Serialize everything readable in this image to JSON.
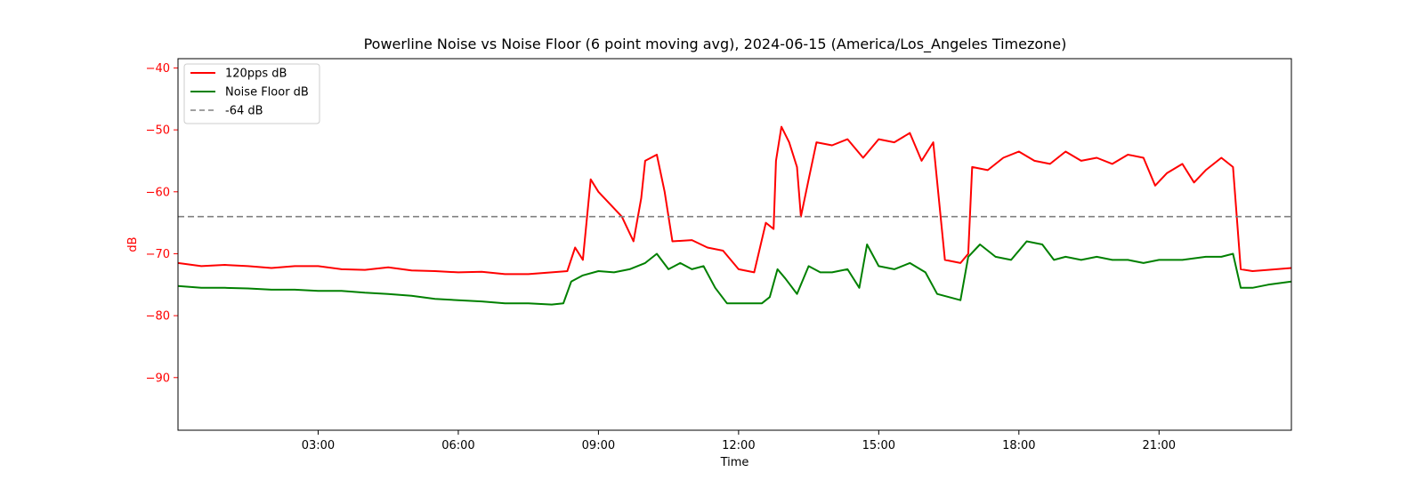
{
  "chart_data": {
    "type": "line",
    "title": "Powerline Noise vs Noise Floor (6 point moving avg), 2024-06-15 (America/Los_Angeles Timezone)",
    "xlabel": "Time",
    "ylabel": "dB",
    "xlim": [
      "00:00",
      "23:50"
    ],
    "ylim": [
      -98.5,
      -38.5
    ],
    "x_ticks": [
      "03:00",
      "06:00",
      "09:00",
      "12:00",
      "15:00",
      "18:00",
      "21:00"
    ],
    "y_ticks": [
      -40,
      -50,
      -60,
      -70,
      -80,
      -90
    ],
    "grid": false,
    "legend_position": "top-left",
    "ylabel_color": "#ff0000",
    "series": [
      {
        "name": "120pps dB",
        "color": "#ff0000",
        "style": "solid",
        "points": [
          [
            "00:00",
            -71.5
          ],
          [
            "00:30",
            -72.0
          ],
          [
            "01:00",
            -71.8
          ],
          [
            "01:30",
            -72.0
          ],
          [
            "02:00",
            -72.3
          ],
          [
            "02:30",
            -72.0
          ],
          [
            "03:00",
            -72.0
          ],
          [
            "03:30",
            -72.5
          ],
          [
            "04:00",
            -72.6
          ],
          [
            "04:30",
            -72.2
          ],
          [
            "05:00",
            -72.7
          ],
          [
            "05:30",
            -72.8
          ],
          [
            "06:00",
            -73.0
          ],
          [
            "06:30",
            -72.9
          ],
          [
            "07:00",
            -73.3
          ],
          [
            "07:30",
            -73.3
          ],
          [
            "08:00",
            -73.0
          ],
          [
            "08:20",
            -72.8
          ],
          [
            "08:30",
            -69.0
          ],
          [
            "08:40",
            -71.0
          ],
          [
            "08:50",
            -58.0
          ],
          [
            "09:00",
            -60.0
          ],
          [
            "09:15",
            -62.0
          ],
          [
            "09:30",
            -64.0
          ],
          [
            "09:45",
            -68.0
          ],
          [
            "09:55",
            -61.0
          ],
          [
            "10:00",
            -55.0
          ],
          [
            "10:15",
            -54.0
          ],
          [
            "10:25",
            -60.0
          ],
          [
            "10:35",
            -68.0
          ],
          [
            "11:00",
            -67.8
          ],
          [
            "11:20",
            -69.0
          ],
          [
            "11:40",
            -69.5
          ],
          [
            "12:00",
            -72.5
          ],
          [
            "12:20",
            -73.0
          ],
          [
            "12:35",
            -65.0
          ],
          [
            "12:45",
            -66.0
          ],
          [
            "12:48",
            -55.0
          ],
          [
            "12:55",
            -49.5
          ],
          [
            "13:05",
            -52.0
          ],
          [
            "13:15",
            -56.0
          ],
          [
            "13:20",
            -64.0
          ],
          [
            "13:30",
            -58.0
          ],
          [
            "13:40",
            -52.0
          ],
          [
            "14:00",
            -52.5
          ],
          [
            "14:20",
            -51.5
          ],
          [
            "14:40",
            -54.5
          ],
          [
            "15:00",
            -51.5
          ],
          [
            "15:20",
            -52.0
          ],
          [
            "15:40",
            -50.5
          ],
          [
            "15:55",
            -55.0
          ],
          [
            "16:10",
            -52.0
          ],
          [
            "16:25",
            -71.0
          ],
          [
            "16:45",
            -71.5
          ],
          [
            "16:55",
            -70.0
          ],
          [
            "17:00",
            -56.0
          ],
          [
            "17:20",
            -56.5
          ],
          [
            "17:40",
            -54.5
          ],
          [
            "18:00",
            -53.5
          ],
          [
            "18:20",
            -55.0
          ],
          [
            "18:40",
            -55.5
          ],
          [
            "19:00",
            -53.5
          ],
          [
            "19:20",
            -55.0
          ],
          [
            "19:40",
            -54.5
          ],
          [
            "20:00",
            -55.5
          ],
          [
            "20:20",
            -54.0
          ],
          [
            "20:40",
            -54.5
          ],
          [
            "20:55",
            -59.0
          ],
          [
            "21:10",
            -57.0
          ],
          [
            "21:30",
            -55.5
          ],
          [
            "21:45",
            -58.5
          ],
          [
            "22:00",
            -56.5
          ],
          [
            "22:20",
            -54.5
          ],
          [
            "22:35",
            -56.0
          ],
          [
            "22:45",
            -72.5
          ],
          [
            "23:00",
            -72.8
          ],
          [
            "23:20",
            -72.6
          ],
          [
            "23:50",
            -72.3
          ]
        ]
      },
      {
        "name": "Noise Floor dB",
        "color": "#008000",
        "style": "solid",
        "points": [
          [
            "00:00",
            -75.2
          ],
          [
            "00:30",
            -75.5
          ],
          [
            "01:00",
            -75.5
          ],
          [
            "01:30",
            -75.6
          ],
          [
            "02:00",
            -75.8
          ],
          [
            "02:30",
            -75.8
          ],
          [
            "03:00",
            -76.0
          ],
          [
            "03:30",
            -76.0
          ],
          [
            "04:00",
            -76.3
          ],
          [
            "04:30",
            -76.5
          ],
          [
            "05:00",
            -76.8
          ],
          [
            "05:30",
            -77.3
          ],
          [
            "06:00",
            -77.5
          ],
          [
            "06:30",
            -77.7
          ],
          [
            "07:00",
            -78.0
          ],
          [
            "07:30",
            -78.0
          ],
          [
            "08:00",
            -78.2
          ],
          [
            "08:15",
            -78.0
          ],
          [
            "08:25",
            -74.5
          ],
          [
            "08:40",
            -73.5
          ],
          [
            "09:00",
            -72.8
          ],
          [
            "09:20",
            -73.0
          ],
          [
            "09:40",
            -72.5
          ],
          [
            "10:00",
            -71.5
          ],
          [
            "10:15",
            -70.0
          ],
          [
            "10:30",
            -72.5
          ],
          [
            "10:45",
            -71.5
          ],
          [
            "11:00",
            -72.5
          ],
          [
            "11:15",
            -72.0
          ],
          [
            "11:30",
            -75.5
          ],
          [
            "11:45",
            -78.0
          ],
          [
            "12:00",
            -78.0
          ],
          [
            "12:30",
            -78.0
          ],
          [
            "12:40",
            -77.0
          ],
          [
            "12:50",
            -72.5
          ],
          [
            "13:00",
            -74.0
          ],
          [
            "13:15",
            -76.5
          ],
          [
            "13:30",
            -72.0
          ],
          [
            "13:45",
            -73.0
          ],
          [
            "14:00",
            -73.0
          ],
          [
            "14:20",
            -72.5
          ],
          [
            "14:35",
            -75.5
          ],
          [
            "14:45",
            -68.5
          ],
          [
            "15:00",
            -72.0
          ],
          [
            "15:20",
            -72.5
          ],
          [
            "15:40",
            -71.5
          ],
          [
            "16:00",
            -73.0
          ],
          [
            "16:15",
            -76.5
          ],
          [
            "16:30",
            -77.0
          ],
          [
            "16:45",
            -77.5
          ],
          [
            "16:55",
            -70.5
          ],
          [
            "17:10",
            -68.5
          ],
          [
            "17:30",
            -70.5
          ],
          [
            "17:50",
            -71.0
          ],
          [
            "18:10",
            -68.0
          ],
          [
            "18:30",
            -68.5
          ],
          [
            "18:45",
            -71.0
          ],
          [
            "19:00",
            -70.5
          ],
          [
            "19:20",
            -71.0
          ],
          [
            "19:40",
            -70.5
          ],
          [
            "20:00",
            -71.0
          ],
          [
            "20:20",
            -71.0
          ],
          [
            "20:40",
            -71.5
          ],
          [
            "21:00",
            -71.0
          ],
          [
            "21:30",
            -71.0
          ],
          [
            "22:00",
            -70.5
          ],
          [
            "22:20",
            -70.5
          ],
          [
            "22:35",
            -70.0
          ],
          [
            "22:45",
            -75.5
          ],
          [
            "23:00",
            -75.5
          ],
          [
            "23:20",
            -75.0
          ],
          [
            "23:50",
            -74.5
          ]
        ]
      },
      {
        "name": "-64 dB",
        "color": "#808080",
        "style": "dashed",
        "value": -64
      }
    ]
  }
}
